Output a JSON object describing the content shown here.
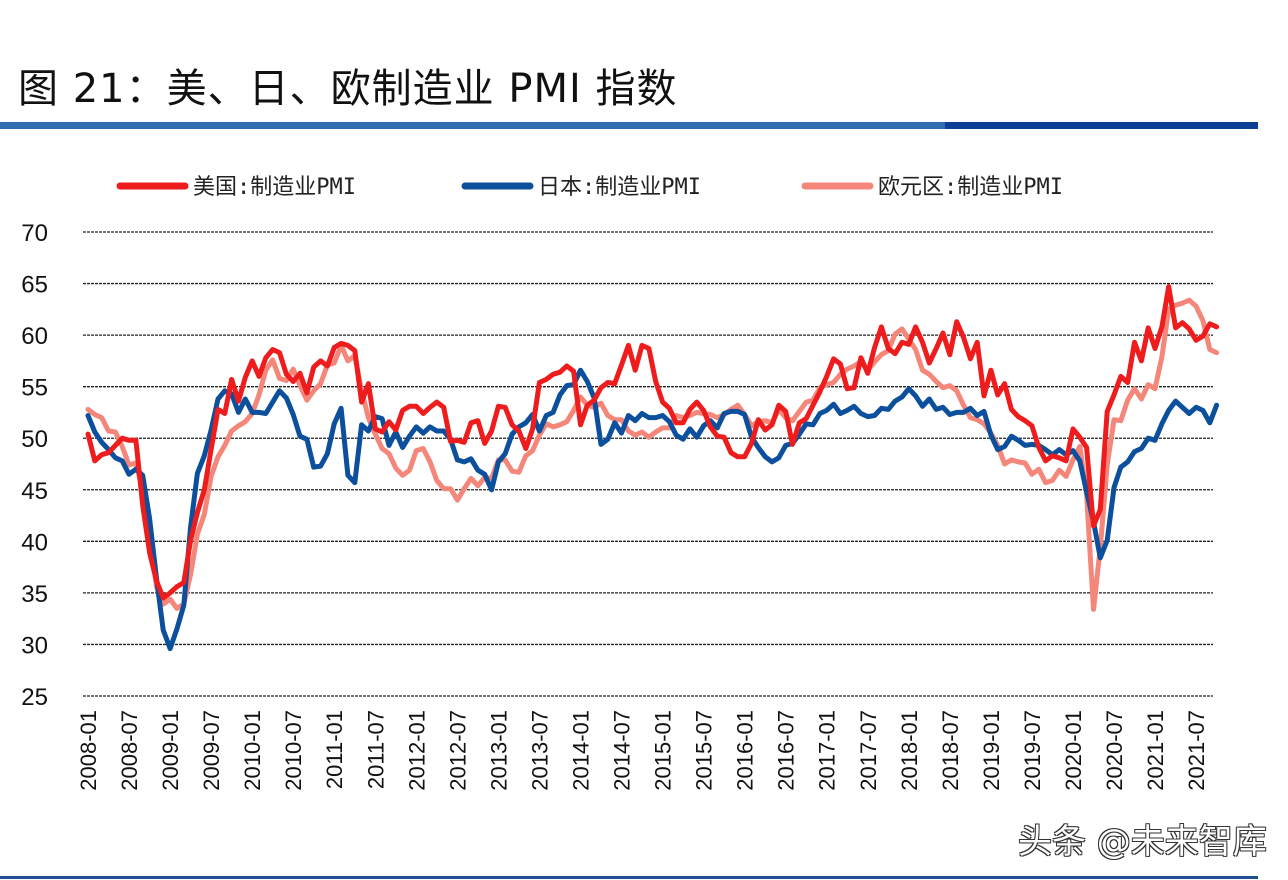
{
  "title": "图 21：美、日、欧制造业 PMI 指数",
  "watermark": "头条 @未来智库",
  "chart_data": {
    "type": "line",
    "title": "",
    "xlabel": "",
    "ylabel": "",
    "ylim": [
      25,
      70
    ],
    "yticks": [
      "70",
      "65",
      "60",
      "55",
      "50",
      "45",
      "40",
      "35",
      "30",
      "25"
    ],
    "ytick_values": [
      70,
      65,
      60,
      55,
      50,
      45,
      40,
      35,
      30,
      25
    ],
    "grid": true,
    "legend_position": "top",
    "x_start": "2008-01",
    "x_frequency": "monthly",
    "xticks": [
      "2008-01",
      "2008-07",
      "2009-01",
      "2009-07",
      "2010-01",
      "2010-07",
      "2011-01",
      "2011-07",
      "2012-01",
      "2012-07",
      "2013-01",
      "2013-07",
      "2014-01",
      "2014-07",
      "2015-01",
      "2015-07",
      "2016-01",
      "2016-07",
      "2017-01",
      "2017-07",
      "2018-01",
      "2018-07",
      "2019-01",
      "2019-07",
      "2020-01",
      "2020-07",
      "2021-01",
      "2021-07"
    ],
    "series": [
      {
        "name": "美国:制造业PMI",
        "color": "#ee1c1c",
        "values": [
          50.4,
          47.8,
          48.4,
          48.6,
          49.3,
          50.0,
          49.8,
          49.8,
          43.5,
          38.9,
          36.2,
          34.5,
          35.0,
          35.6,
          36.0,
          40.1,
          42.8,
          45.0,
          48.9,
          52.8,
          52.4,
          55.7,
          53.6,
          55.9,
          57.5,
          56.0,
          57.8,
          58.6,
          58.3,
          56.2,
          55.5,
          56.3,
          54.4,
          56.9,
          57.5,
          57.0,
          58.8,
          59.2,
          59.0,
          58.5,
          53.5,
          55.3,
          50.9,
          50.6,
          51.6,
          50.8,
          52.7,
          53.1,
          53.1,
          52.4,
          53.0,
          53.5,
          53.0,
          49.7,
          49.8,
          49.6,
          51.5,
          51.7,
          49.5,
          50.7,
          53.1,
          53.0,
          51.3,
          50.7,
          49.0,
          50.9,
          55.4,
          55.7,
          56.2,
          56.4,
          57.0,
          56.5,
          51.3,
          53.2,
          53.7,
          54.9,
          55.4,
          55.3,
          57.1,
          59.0,
          56.6,
          59.0,
          58.7,
          55.5,
          53.5,
          52.9,
          51.5,
          51.5,
          52.8,
          53.5,
          52.7,
          51.1,
          50.2,
          50.1,
          48.6,
          48.2,
          48.2,
          49.5,
          51.8,
          50.8,
          51.3,
          53.2,
          52.6,
          49.4,
          51.5,
          51.9,
          53.2,
          54.5,
          56.0,
          57.7,
          57.2,
          54.8,
          54.9,
          57.8,
          56.3,
          58.8,
          60.8,
          58.7,
          58.2,
          59.3,
          59.1,
          60.8,
          59.3,
          57.3,
          58.7,
          60.2,
          58.1,
          61.3,
          59.8,
          57.7,
          59.3,
          54.1,
          56.6,
          54.2,
          55.3,
          52.8,
          52.1,
          51.7,
          51.2,
          49.1,
          47.8,
          48.3,
          48.1,
          47.8,
          50.9,
          50.1,
          49.1,
          41.5,
          43.1,
          52.6,
          54.2,
          56.0,
          55.4,
          59.3,
          57.5,
          60.7,
          58.7,
          60.8,
          64.7,
          60.7,
          61.2,
          60.6,
          59.5,
          59.9,
          61.1,
          60.8
        ]
      },
      {
        "name": "日本:制造业PMI",
        "color": "#0c4f9c",
        "values": [
          52.2,
          50.6,
          49.6,
          48.9,
          48.1,
          47.8,
          46.5,
          47.0,
          46.4,
          42.2,
          36.5,
          31.4,
          29.6,
          31.5,
          33.8,
          41.4,
          46.6,
          48.3,
          50.8,
          53.8,
          54.6,
          54.3,
          52.5,
          53.8,
          52.5,
          52.5,
          52.4,
          53.5,
          54.6,
          53.9,
          52.3,
          50.2,
          49.9,
          47.2,
          47.3,
          48.5,
          51.4,
          52.9,
          46.4,
          45.7,
          51.3,
          50.7,
          52.1,
          51.9,
          49.3,
          50.6,
          49.1,
          50.2,
          51.1,
          50.5,
          51.1,
          50.7,
          50.7,
          49.9,
          47.9,
          47.7,
          48.0,
          46.9,
          46.5,
          45.0,
          47.7,
          48.5,
          50.4,
          51.1,
          51.5,
          52.3,
          50.7,
          52.2,
          52.5,
          54.2,
          55.1,
          55.2,
          56.6,
          55.5,
          53.9,
          49.4,
          49.9,
          51.5,
          50.5,
          52.2,
          51.7,
          52.4,
          52.0,
          52.0,
          52.2,
          51.6,
          50.3,
          49.9,
          50.9,
          50.1,
          51.2,
          51.7,
          51.0,
          52.4,
          52.6,
          52.6,
          52.3,
          50.1,
          49.1,
          48.2,
          47.7,
          48.1,
          49.3,
          49.5,
          50.4,
          51.4,
          51.3,
          52.4,
          52.7,
          53.3,
          52.4,
          52.7,
          53.1,
          52.4,
          52.1,
          52.2,
          52.9,
          52.8,
          53.6,
          54.0,
          54.8,
          54.1,
          53.1,
          53.8,
          52.8,
          53.0,
          52.3,
          52.5,
          52.5,
          52.9,
          52.2,
          52.6,
          50.3,
          48.9,
          49.2,
          50.2,
          49.8,
          49.3,
          49.4,
          49.3,
          48.9,
          48.4,
          48.9,
          48.4,
          48.8,
          47.8,
          44.8,
          41.9,
          38.4,
          40.1,
          45.2,
          47.2,
          47.7,
          48.7,
          49.0,
          50.0,
          49.8,
          51.4,
          52.7,
          53.6,
          53.0,
          52.4,
          53.0,
          52.7,
          51.5,
          53.2
        ]
      },
      {
        "name": "欧元区:制造业PMI",
        "color": "#f4867a",
        "values": [
          52.8,
          52.3,
          52.0,
          50.7,
          50.6,
          49.2,
          47.4,
          47.6,
          45.0,
          41.1,
          35.6,
          33.9,
          34.4,
          33.5,
          33.9,
          36.8,
          40.7,
          42.6,
          46.3,
          48.2,
          49.3,
          50.7,
          51.2,
          51.6,
          52.4,
          54.2,
          56.6,
          57.6,
          55.8,
          55.6,
          56.7,
          55.1,
          53.7,
          54.6,
          55.3,
          57.1,
          57.3,
          59.0,
          57.5,
          58.0,
          54.6,
          52.0,
          50.4,
          49.0,
          48.5,
          47.1,
          46.4,
          46.9,
          48.8,
          49.0,
          47.7,
          45.9,
          45.1,
          45.1,
          44.0,
          45.1,
          46.1,
          45.4,
          46.2,
          46.1,
          47.9,
          47.9,
          46.8,
          46.7,
          48.3,
          48.8,
          50.3,
          51.4,
          51.1,
          51.3,
          51.6,
          52.7,
          54.0,
          53.2,
          53.0,
          53.4,
          52.2,
          51.8,
          51.8,
          50.7,
          50.3,
          50.6,
          50.1,
          50.6,
          51.0,
          51.0,
          52.2,
          52.0,
          52.2,
          52.5,
          52.4,
          52.3,
          52.0,
          52.3,
          52.8,
          53.2,
          52.3,
          51.2,
          51.6,
          51.7,
          51.5,
          52.8,
          52.0,
          51.7,
          52.6,
          53.5,
          53.7,
          54.9,
          55.2,
          55.4,
          56.2,
          56.7,
          57.0,
          57.4,
          56.6,
          57.4,
          58.1,
          58.5,
          60.1,
          60.6,
          59.6,
          58.6,
          56.6,
          56.2,
          55.5,
          54.9,
          55.1,
          54.6,
          53.2,
          52.0,
          51.8,
          51.4,
          50.5,
          49.3,
          47.5,
          47.9,
          47.7,
          47.6,
          46.5,
          47.0,
          45.7,
          45.9,
          46.9,
          46.3,
          47.9,
          49.2,
          44.5,
          33.4,
          39.4,
          47.4,
          51.8,
          51.7,
          53.7,
          54.8,
          53.8,
          55.2,
          54.8,
          57.9,
          62.5,
          62.9,
          63.1,
          63.4,
          62.8,
          61.4,
          58.6,
          58.3
        ]
      }
    ]
  }
}
